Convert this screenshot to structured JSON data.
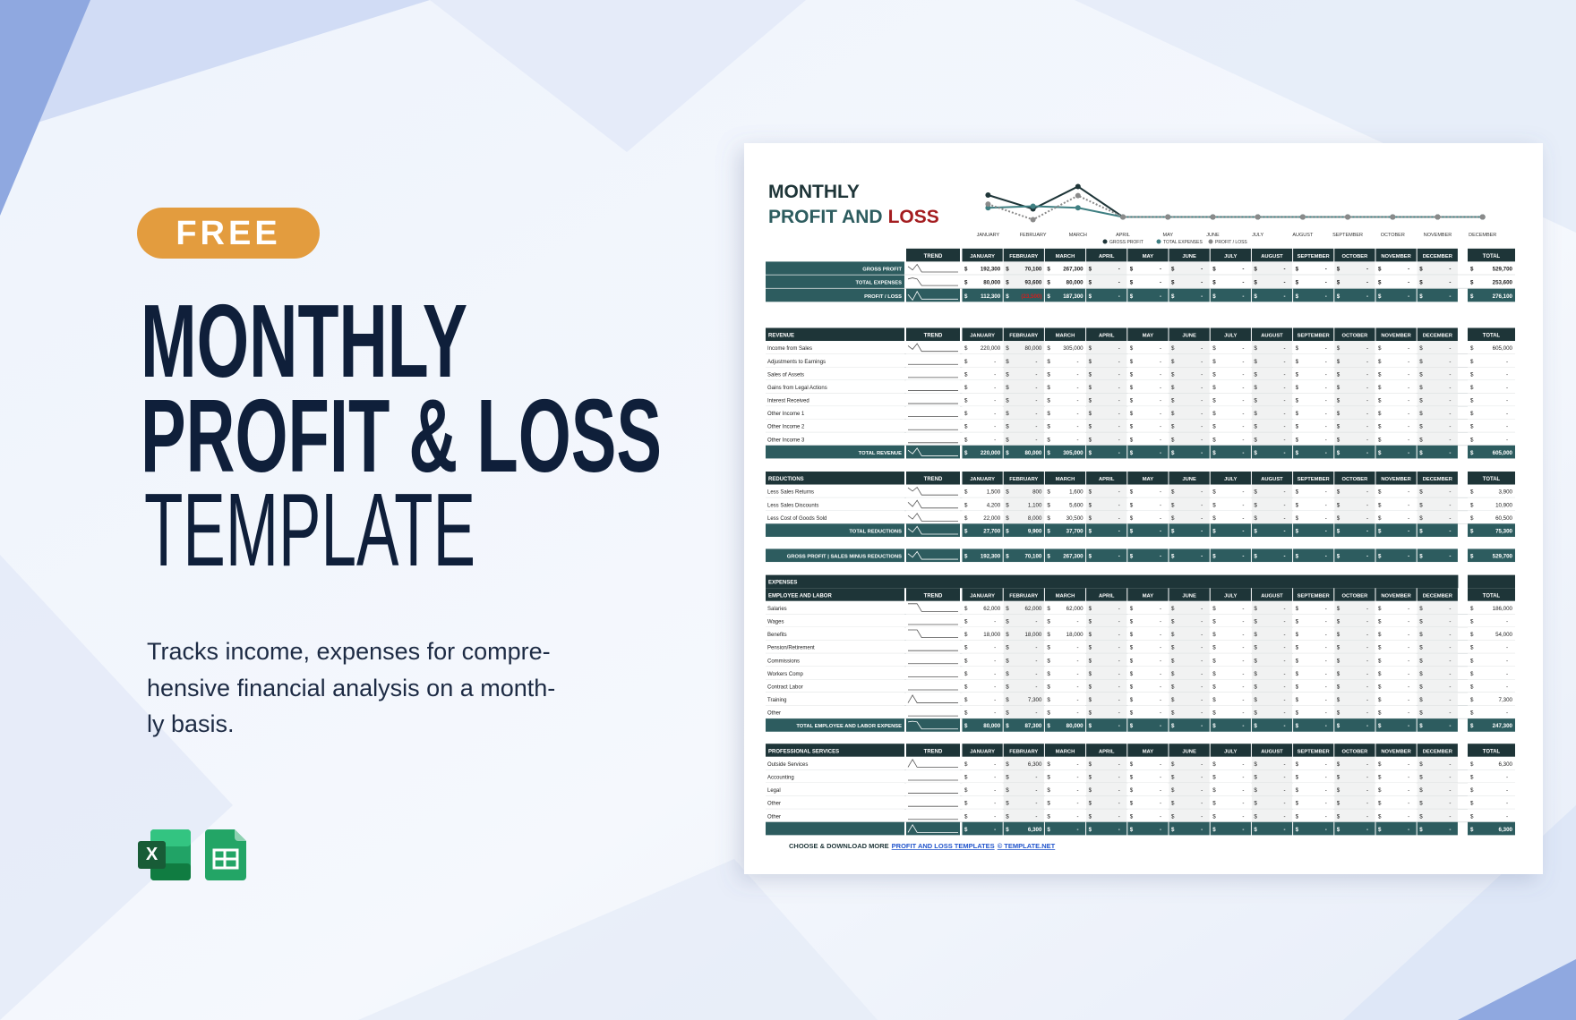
{
  "badge": "FREE",
  "headline": [
    "MONTHLY",
    "PROFIT & LOSS",
    "TEMPLATE"
  ],
  "description": [
    "Tracks income, expenses for compre-",
    "hensive financial analysis on a month-",
    "ly basis."
  ],
  "sheet": {
    "title": "MONTHLY",
    "subtitle": "PROFIT AND",
    "subtitle_accent": "LOSS",
    "legend": [
      "GROSS PROFIT",
      "TOTAL EXPENSES",
      "PROFIT / LOSS"
    ],
    "months": [
      "JANUARY",
      "FEBRUARY",
      "MARCH",
      "APRIL",
      "MAY",
      "JUNE",
      "JULY",
      "AUGUST",
      "SEPTEMBER",
      "OCTOBER",
      "NOVEMBER",
      "DECEMBER"
    ],
    "trend": "TREND",
    "total": "TOTAL",
    "currency": "$",
    "summary": [
      {
        "label": "GROSS PROFIT",
        "cells": [
          "192,300",
          "70,100",
          "267,300",
          "-",
          "-",
          "-",
          "-",
          "-",
          "-",
          "-",
          "-",
          "-"
        ],
        "total": "529,700"
      },
      {
        "label": "TOTAL EXPENSES",
        "cells": [
          "80,000",
          "93,600",
          "80,000",
          "-",
          "-",
          "-",
          "-",
          "-",
          "-",
          "-",
          "-",
          "-"
        ],
        "total": "253,600"
      },
      {
        "label": "PROFIT / LOSS",
        "cells": [
          "112,300",
          "(23,500)",
          "187,300",
          "-",
          "-",
          "-",
          "-",
          "-",
          "-",
          "-",
          "-",
          "-"
        ],
        "total": "276,100"
      }
    ],
    "revenue": {
      "label": "REVENUE",
      "rows": [
        {
          "label": "Income from Sales",
          "cells": [
            "220,000",
            "80,000",
            "305,000",
            "-",
            "-",
            "-",
            "-",
            "-",
            "-",
            "-",
            "-",
            "-"
          ],
          "total": "605,000"
        },
        {
          "label": "Adjustments to Earnings",
          "cells": [
            "-",
            "-",
            "-",
            "-",
            "-",
            "-",
            "-",
            "-",
            "-",
            "-",
            "-",
            "-"
          ],
          "total": "-"
        },
        {
          "label": "Sales of Assets",
          "cells": [
            "-",
            "-",
            "-",
            "-",
            "-",
            "-",
            "-",
            "-",
            "-",
            "-",
            "-",
            "-"
          ],
          "total": "-"
        },
        {
          "label": "Gains from Legal Actions",
          "cells": [
            "-",
            "-",
            "-",
            "-",
            "-",
            "-",
            "-",
            "-",
            "-",
            "-",
            "-",
            "-"
          ],
          "total": "-"
        },
        {
          "label": "Interest Received",
          "cells": [
            "-",
            "-",
            "-",
            "-",
            "-",
            "-",
            "-",
            "-",
            "-",
            "-",
            "-",
            "-"
          ],
          "total": "-"
        },
        {
          "label": "Other Income 1",
          "cells": [
            "-",
            "-",
            "-",
            "-",
            "-",
            "-",
            "-",
            "-",
            "-",
            "-",
            "-",
            "-"
          ],
          "total": "-"
        },
        {
          "label": "Other Income 2",
          "cells": [
            "-",
            "-",
            "-",
            "-",
            "-",
            "-",
            "-",
            "-",
            "-",
            "-",
            "-",
            "-"
          ],
          "total": "-"
        },
        {
          "label": "Other Income 3",
          "cells": [
            "-",
            "-",
            "-",
            "-",
            "-",
            "-",
            "-",
            "-",
            "-",
            "-",
            "-",
            "-"
          ],
          "total": "-"
        }
      ],
      "total_row": {
        "label": "TOTAL REVENUE",
        "cells": [
          "220,000",
          "80,000",
          "305,000",
          "-",
          "-",
          "-",
          "-",
          "-",
          "-",
          "-",
          "-",
          "-"
        ],
        "total": "605,000"
      }
    },
    "reductions": {
      "label": "REDUCTIONS",
      "rows": [
        {
          "label": "Less Sales Returns",
          "cells": [
            "1,500",
            "800",
            "1,600",
            "-",
            "-",
            "-",
            "-",
            "-",
            "-",
            "-",
            "-",
            "-"
          ],
          "total": "3,900"
        },
        {
          "label": "Less Sales Discounts",
          "cells": [
            "4,200",
            "1,100",
            "5,600",
            "-",
            "-",
            "-",
            "-",
            "-",
            "-",
            "-",
            "-",
            "-"
          ],
          "total": "10,900"
        },
        {
          "label": "Less Cost of Goods Sold",
          "cells": [
            "22,000",
            "8,000",
            "30,500",
            "-",
            "-",
            "-",
            "-",
            "-",
            "-",
            "-",
            "-",
            "-"
          ],
          "total": "60,500"
        }
      ],
      "total_row": {
        "label": "TOTAL REDUCTIONS",
        "cells": [
          "27,700",
          "9,900",
          "37,700",
          "-",
          "-",
          "-",
          "-",
          "-",
          "-",
          "-",
          "-",
          "-"
        ],
        "total": "75,300"
      }
    },
    "gross_profit": {
      "label": "GROSS PROFIT | SALES MINUS REDUCTIONS",
      "cells": [
        "192,300",
        "70,100",
        "267,300",
        "-",
        "-",
        "-",
        "-",
        "-",
        "-",
        "-",
        "-",
        "-"
      ],
      "total": "529,700"
    },
    "expenses": {
      "label": "EXPENSES",
      "groups": [
        {
          "label": "EMPLOYEE AND LABOR",
          "rows": [
            {
              "label": "Salaries",
              "cells": [
                "62,000",
                "62,000",
                "62,000",
                "-",
                "-",
                "-",
                "-",
                "-",
                "-",
                "-",
                "-",
                "-"
              ],
              "total": "186,000"
            },
            {
              "label": "Wages",
              "cells": [
                "-",
                "-",
                "-",
                "-",
                "-",
                "-",
                "-",
                "-",
                "-",
                "-",
                "-",
                "-"
              ],
              "total": "-"
            },
            {
              "label": "Benefits",
              "cells": [
                "18,000",
                "18,000",
                "18,000",
                "-",
                "-",
                "-",
                "-",
                "-",
                "-",
                "-",
                "-",
                "-"
              ],
              "total": "54,000"
            },
            {
              "label": "Pension/Retirement",
              "cells": [
                "-",
                "-",
                "-",
                "-",
                "-",
                "-",
                "-",
                "-",
                "-",
                "-",
                "-",
                "-"
              ],
              "total": "-"
            },
            {
              "label": "Commissions",
              "cells": [
                "-",
                "-",
                "-",
                "-",
                "-",
                "-",
                "-",
                "-",
                "-",
                "-",
                "-",
                "-"
              ],
              "total": "-"
            },
            {
              "label": "Workers Comp",
              "cells": [
                "-",
                "-",
                "-",
                "-",
                "-",
                "-",
                "-",
                "-",
                "-",
                "-",
                "-",
                "-"
              ],
              "total": "-"
            },
            {
              "label": "Contract Labor",
              "cells": [
                "-",
                "-",
                "-",
                "-",
                "-",
                "-",
                "-",
                "-",
                "-",
                "-",
                "-",
                "-"
              ],
              "total": "-"
            },
            {
              "label": "Training",
              "cells": [
                "-",
                "7,300",
                "-",
                "-",
                "-",
                "-",
                "-",
                "-",
                "-",
                "-",
                "-",
                "-"
              ],
              "total": "7,300"
            },
            {
              "label": "Other",
              "cells": [
                "-",
                "-",
                "-",
                "-",
                "-",
                "-",
                "-",
                "-",
                "-",
                "-",
                "-",
                "-"
              ],
              "total": "-"
            }
          ],
          "total_row": {
            "label": "TOTAL EMPLOYEE AND LABOR EXPENSE",
            "cells": [
              "80,000",
              "87,300",
              "80,000",
              "-",
              "-",
              "-",
              "-",
              "-",
              "-",
              "-",
              "-",
              "-"
            ],
            "total": "247,300"
          }
        },
        {
          "label": "PROFESSIONAL SERVICES",
          "rows": [
            {
              "label": "Outside Services",
              "cells": [
                "-",
                "6,300",
                "-",
                "-",
                "-",
                "-",
                "-",
                "-",
                "-",
                "-",
                "-",
                "-"
              ],
              "total": "6,300"
            },
            {
              "label": "Accounting",
              "cells": [
                "-",
                "-",
                "-",
                "-",
                "-",
                "-",
                "-",
                "-",
                "-",
                "-",
                "-",
                "-"
              ],
              "total": "-"
            },
            {
              "label": "Legal",
              "cells": [
                "-",
                "-",
                "-",
                "-",
                "-",
                "-",
                "-",
                "-",
                "-",
                "-",
                "-",
                "-"
              ],
              "total": "-"
            },
            {
              "label": "Other",
              "cells": [
                "-",
                "-",
                "-",
                "-",
                "-",
                "-",
                "-",
                "-",
                "-",
                "-",
                "-",
                "-"
              ],
              "total": "-"
            },
            {
              "label": "Other",
              "cells": [
                "-",
                "-",
                "-",
                "-",
                "-",
                "-",
                "-",
                "-",
                "-",
                "-",
                "-",
                "-"
              ],
              "total": "-"
            }
          ],
          "total_row": {
            "cells": [
              "-",
              "6,300",
              "-",
              "-",
              "-",
              "-",
              "-",
              "-",
              "-",
              "-",
              "-",
              "-"
            ],
            "total": "6,300"
          }
        }
      ]
    },
    "footer": {
      "text": "CHOOSE & DOWNLOAD MORE",
      "link": "PROFIT AND LOSS TEMPLATES",
      "site": "© TEMPLATE.NET"
    }
  }
}
